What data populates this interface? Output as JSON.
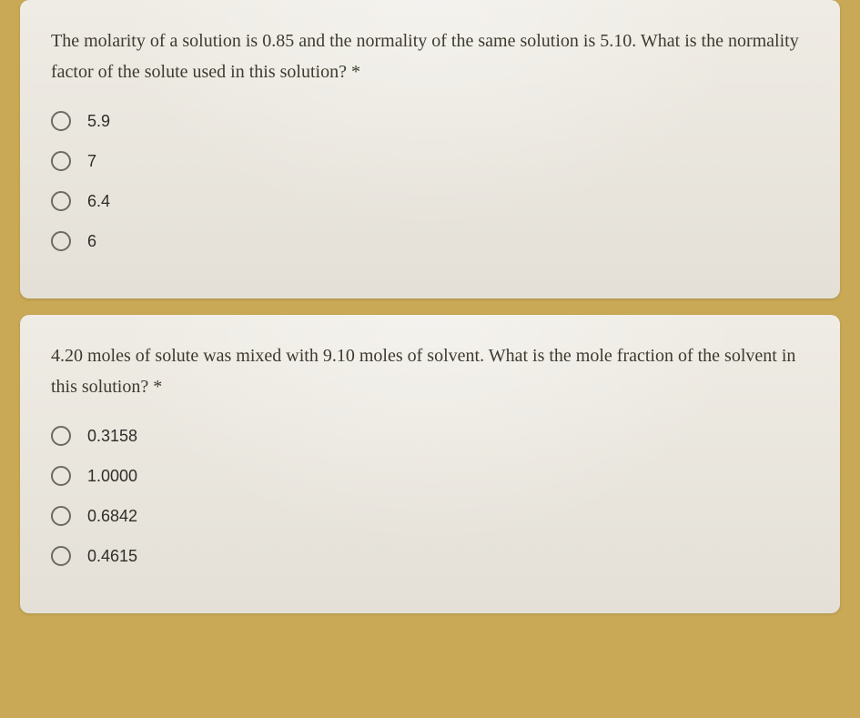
{
  "page": {
    "background_color": "#c9a956",
    "card_background": "#e8e4dc",
    "question_text_color": "#3d3a2e",
    "option_text_color": "#2e2d29",
    "radio_border_color": "#6c6a62",
    "question_font_family": "Georgia",
    "option_font_family": "Arial",
    "question_font_size": 20,
    "option_font_size": 18
  },
  "questions": [
    {
      "prompt": "The molarity of a solution is 0.85 and the normality of the same solution is 5.10. What is the normality factor of the solute used in this solution? *",
      "options": [
        "5.9",
        "7",
        "6.4",
        "6"
      ]
    },
    {
      "prompt": "4.20 moles of solute was mixed with 9.10 moles of solvent. What is the mole fraction of the solvent in this solution? *",
      "options": [
        "0.3158",
        "1.0000",
        "0.6842",
        "0.4615"
      ]
    }
  ]
}
